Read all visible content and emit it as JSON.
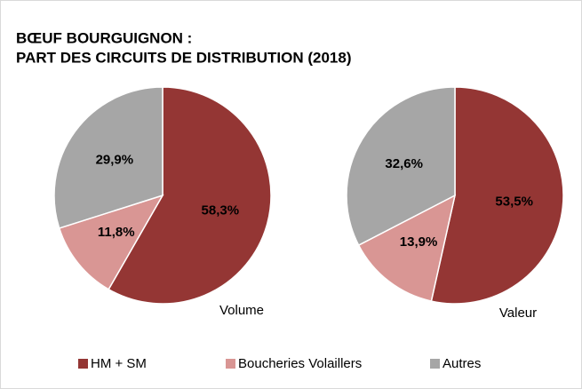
{
  "title": [
    "BŒUF BOURGUIGNON :",
    "PART DES CIRCUITS DE DISTRIBUTION (2018)"
  ],
  "chart_data": [
    {
      "type": "pie",
      "label": "Volume",
      "categories": [
        "HM + SM",
        "Boucheries Volaillers",
        "Autres"
      ],
      "values": [
        58.3,
        11.8,
        29.9
      ],
      "value_labels": [
        "58,3%",
        "11,8%",
        "29,9%"
      ],
      "colors": [
        "#943634",
        "#d99694",
        "#a6a6a6"
      ]
    },
    {
      "type": "pie",
      "label": "Valeur",
      "categories": [
        "HM + SM",
        "Boucheries Volaillers",
        "Autres"
      ],
      "values": [
        53.5,
        13.9,
        32.6
      ],
      "value_labels": [
        "53,5%",
        "13,9%",
        "32,6%"
      ],
      "colors": [
        "#943634",
        "#d99694",
        "#a6a6a6"
      ]
    }
  ]
}
